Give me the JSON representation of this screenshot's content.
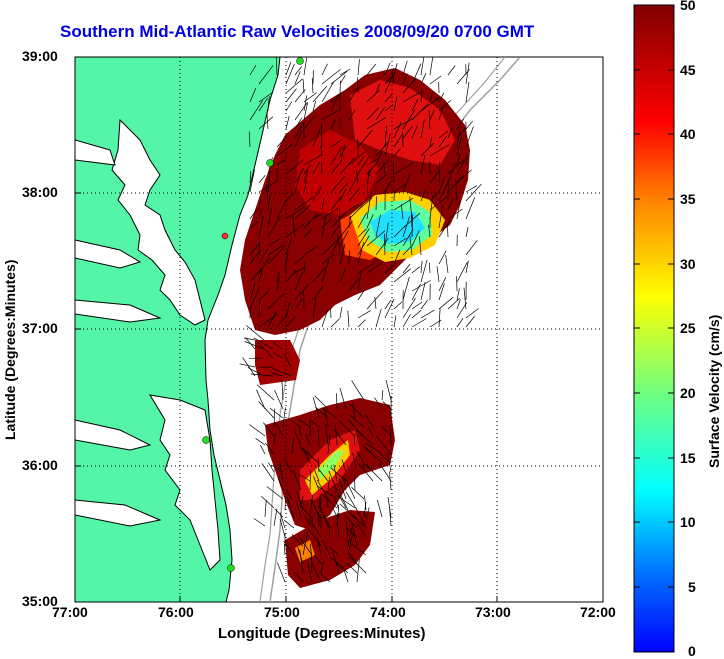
{
  "title": "Southern Mid-Atlantic Raw Velocities 2008/09/20 0700 GMT",
  "xlabel": "Longitude (Degrees:Minutes)",
  "ylabel": "Latitude (Degrees:Minutes)",
  "colorbar_label": "Surface Velocity (cm/s)",
  "x_ticks": [
    "77:00",
    "76:00",
    "75:00",
    "74:00",
    "73:00",
    "72:00"
  ],
  "y_ticks": [
    "39:00",
    "38:00",
    "37:00",
    "36:00",
    "35:00"
  ],
  "colorbar_ticks": [
    "50",
    "45",
    "40",
    "35",
    "30",
    "25",
    "20",
    "15",
    "10",
    "5",
    "0"
  ],
  "colors": {
    "land": "#55f5a8",
    "coast": "#000000",
    "title": "#0000e0"
  },
  "chart_data": {
    "type": "heatmap",
    "title": "Southern Mid-Atlantic Raw Velocities 2008/09/20 0700 GMT",
    "xlabel": "Longitude (Degrees:Minutes)",
    "ylabel": "Latitude (Degrees:Minutes)",
    "xlim": [
      -77,
      -72
    ],
    "ylim": [
      35,
      39
    ],
    "colorbar": {
      "label": "Surface Velocity (cm/s)",
      "range": [
        0,
        50
      ]
    },
    "grid": true
  }
}
